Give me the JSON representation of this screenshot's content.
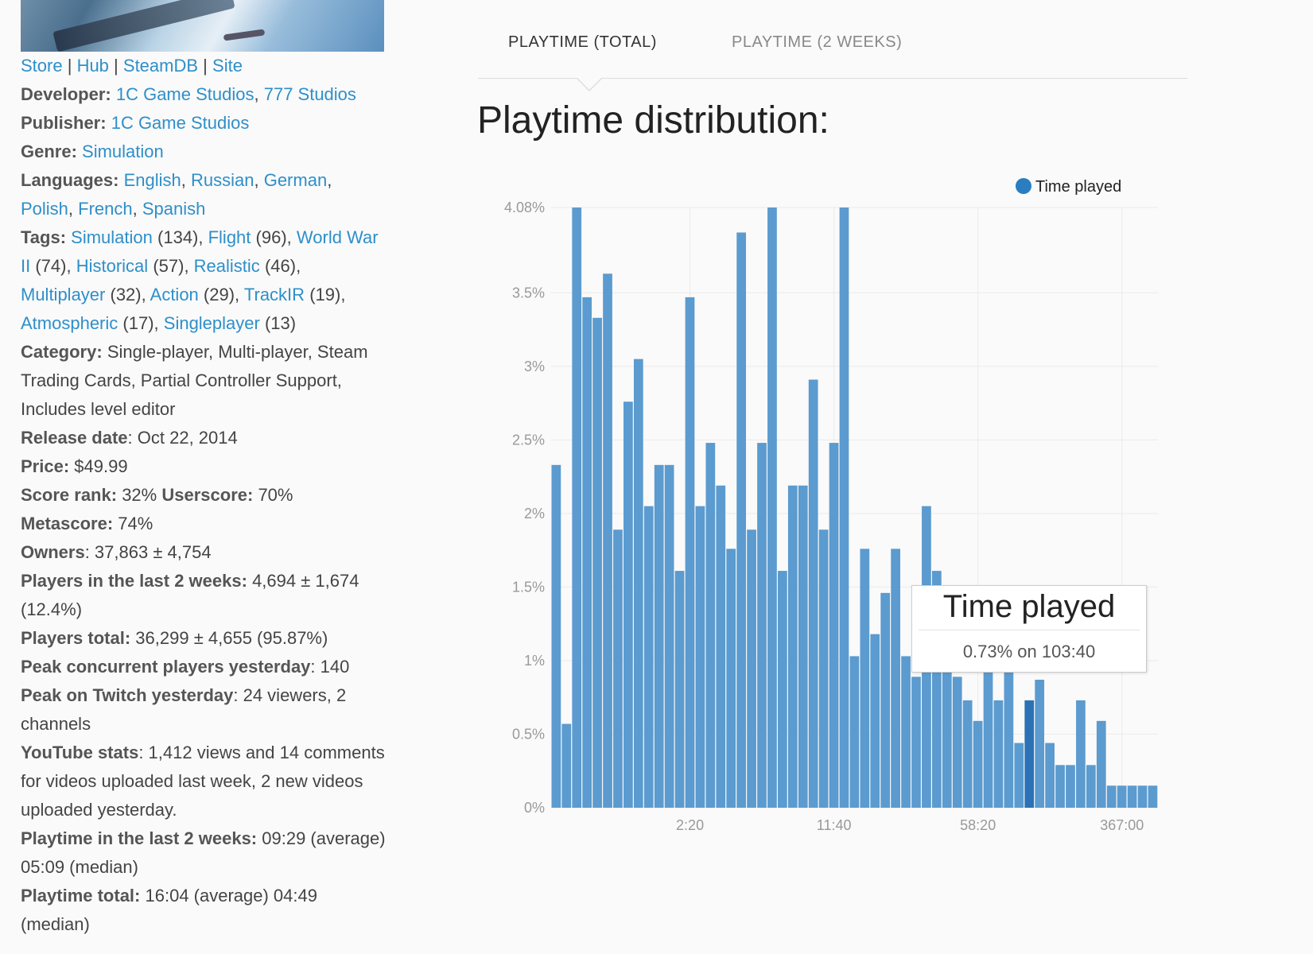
{
  "links": {
    "store": "Store",
    "hub": "Hub",
    "steamdb": "SteamDB",
    "site": "Site",
    "sep": "|"
  },
  "info": {
    "developer_label": "Developer:",
    "developer_1": "1C Game Studios",
    "developer_2": "777 Studios",
    "publisher_label": "Publisher:",
    "publisher": "1C Game Studios",
    "genre_label": "Genre:",
    "genre": "Simulation",
    "languages_label": "Languages:",
    "languages": [
      "English",
      "Russian",
      "German",
      "Polish",
      "French",
      "Spanish"
    ],
    "tags_label": "Tags:",
    "tags": [
      {
        "name": "Simulation",
        "count": "(134)"
      },
      {
        "name": "Flight",
        "count": "(96)"
      },
      {
        "name": "World War II",
        "count": "(74)"
      },
      {
        "name": "Historical",
        "count": "(57)"
      },
      {
        "name": "Realistic",
        "count": "(46)"
      },
      {
        "name": "Multiplayer",
        "count": "(32)"
      },
      {
        "name": "Action",
        "count": "(29)"
      },
      {
        "name": "TrackIR",
        "count": "(19)"
      },
      {
        "name": "Atmospheric",
        "count": "(17)"
      },
      {
        "name": "Singleplayer",
        "count": "(13)"
      }
    ],
    "category_label": "Category:",
    "category": "Single-player, Multi-player, Steam Trading Cards, Partial Controller Support, Includes level editor",
    "release_label": "Release date",
    "release": ": Oct 22, 2014",
    "price_label": "Price:",
    "price": "$49.99",
    "score_rank_label": "Score rank:",
    "score_rank": "32%",
    "userscore_label": "Userscore:",
    "userscore": "70%",
    "metascore_label": "Metascore:",
    "metascore": "74%",
    "owners_label": "Owners",
    "owners": ": 37,863 ± 4,754",
    "players2w_label": "Players in the last 2 weeks:",
    "players2w": "4,694 ± 1,674 (12.4%)",
    "players_total_label": "Players total:",
    "players_total": "36,299 ± 4,655 (95.87%)",
    "peak_label": "Peak concurrent players yesterday",
    "peak": ": 140",
    "twitch_label": "Peak on Twitch yesterday",
    "twitch": ": 24 viewers, 2 channels",
    "youtube_label": "YouTube stats",
    "youtube": ": 1,412 views and 14 comments for videos uploaded last week, 2 new videos uploaded yesterday.",
    "playtime2w_label": "Playtime in the last 2 weeks:",
    "playtime2w": "09:29 (average) 05:09 (median)",
    "playtime_total_label": "Playtime total:",
    "playtime_total": "16:04 (average) 04:49 (median)"
  },
  "tabs": {
    "total": "PLAYTIME (TOTAL)",
    "two_weeks": "PLAYTIME (2 WEEKS)"
  },
  "title": "Playtime distribution:",
  "tooltip": {
    "title": "Time played",
    "text": "0.73% on 103:40"
  },
  "colors": {
    "bar": "#5b9bcf",
    "bar_highlight": "#2a72b5",
    "legend_dot": "#2a7dc0"
  },
  "chart_data": {
    "type": "bar",
    "legend": "Time played",
    "legend_position": "top-right",
    "grid": true,
    "y_ticks": [
      "0%",
      "0.5%",
      "1%",
      "1.5%",
      "2%",
      "2.5%",
      "3%",
      "3.5%",
      "4.08%"
    ],
    "y_tick_values": [
      0,
      0.5,
      1,
      1.5,
      2,
      2.5,
      3,
      3.5,
      4.08
    ],
    "ylim": [
      0,
      4.08
    ],
    "x_tick_labels": [
      {
        "label": "2:20",
        "bar_index": 13
      },
      {
        "label": "11:40",
        "bar_index": 27
      },
      {
        "label": "58:20",
        "bar_index": 41
      },
      {
        "label": "367:00",
        "bar_index": 55
      }
    ],
    "highlighted_bar": 46,
    "values": [
      2.33,
      0.57,
      4.08,
      3.47,
      3.33,
      3.63,
      1.89,
      2.76,
      3.05,
      2.05,
      2.33,
      2.33,
      1.61,
      3.47,
      2.05,
      2.48,
      2.19,
      1.76,
      3.91,
      1.89,
      2.48,
      4.08,
      1.61,
      2.19,
      2.19,
      2.91,
      1.89,
      2.48,
      4.08,
      1.03,
      1.76,
      1.18,
      1.46,
      1.76,
      1.03,
      0.89,
      2.05,
      1.61,
      1.3,
      0.89,
      0.73,
      0.59,
      1.03,
      0.73,
      1.03,
      0.44,
      0.73,
      0.87,
      0.44,
      0.29,
      0.29,
      0.73,
      0.29,
      0.59,
      0.15,
      0.15,
      0.15,
      0.15,
      0.15
    ]
  }
}
